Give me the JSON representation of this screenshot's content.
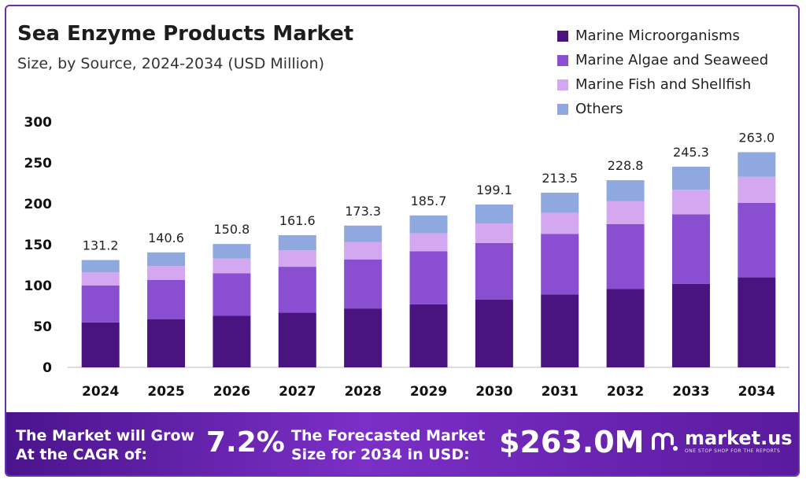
{
  "title": "Sea Enzyme Products Market",
  "subtitle": "Size, by Source, 2024-2034 (USD Million)",
  "colors": {
    "marine_microorganisms": "#4a1480",
    "marine_algae_and_seaweed": "#8a4fd0",
    "marine_fish_and_shellfish": "#d4a8f0",
    "others": "#8fa8e0",
    "accent": "#6b2fb3"
  },
  "chart_data": {
    "type": "bar",
    "stacked": true,
    "title": "Sea Enzyme Products Market",
    "subtitle": "Size, by Source, 2024-2034 (USD Million)",
    "categories": [
      "2024",
      "2025",
      "2026",
      "2027",
      "2028",
      "2029",
      "2030",
      "2031",
      "2032",
      "2033",
      "2034"
    ],
    "series": [
      {
        "name": "Marine Microorganisms",
        "color": "#4a1480",
        "values": [
          55,
          59,
          63,
          67,
          72,
          77,
          83,
          89,
          96,
          102,
          110
        ]
      },
      {
        "name": "Marine Algae and Seaweed",
        "color": "#8a4fd0",
        "values": [
          45,
          48,
          52,
          56,
          60,
          65,
          69,
          74,
          79,
          85,
          91
        ]
      },
      {
        "name": "Marine Fish and Shellfish",
        "color": "#d4a8f0",
        "values": [
          16,
          17,
          18,
          20,
          21,
          22,
          24,
          26,
          28,
          30,
          32
        ]
      },
      {
        "name": "Others",
        "color": "#8fa8e0",
        "values": [
          15.2,
          16.6,
          17.8,
          18.6,
          20.3,
          21.7,
          23.1,
          24.5,
          25.8,
          28.3,
          30.0
        ]
      }
    ],
    "totals": [
      "131.2",
      "140.6",
      "150.8",
      "161.6",
      "173.3",
      "185.7",
      "199.1",
      "213.5",
      "228.8",
      "245.3",
      "263.0"
    ],
    "yticks": [
      "0",
      "50",
      "100",
      "150",
      "200",
      "250",
      "300"
    ],
    "ylim": [
      0,
      300
    ],
    "xlabel": "",
    "ylabel": "",
    "grid": false,
    "legend_position": "top-right"
  },
  "footer": {
    "cagr_label_line1": "The Market will Grow",
    "cagr_label_line2": "At the CAGR of:",
    "cagr_value": "7.2%",
    "forecast_label_line1": "The Forecasted Market",
    "forecast_label_line2": "Size for 2034 in USD:",
    "forecast_value": "$263.0M",
    "brand_name": "market.us",
    "brand_tagline": "ONE STOP SHOP FOR THE REPORTS",
    "brand_icon": "market-us-logo-icon"
  }
}
